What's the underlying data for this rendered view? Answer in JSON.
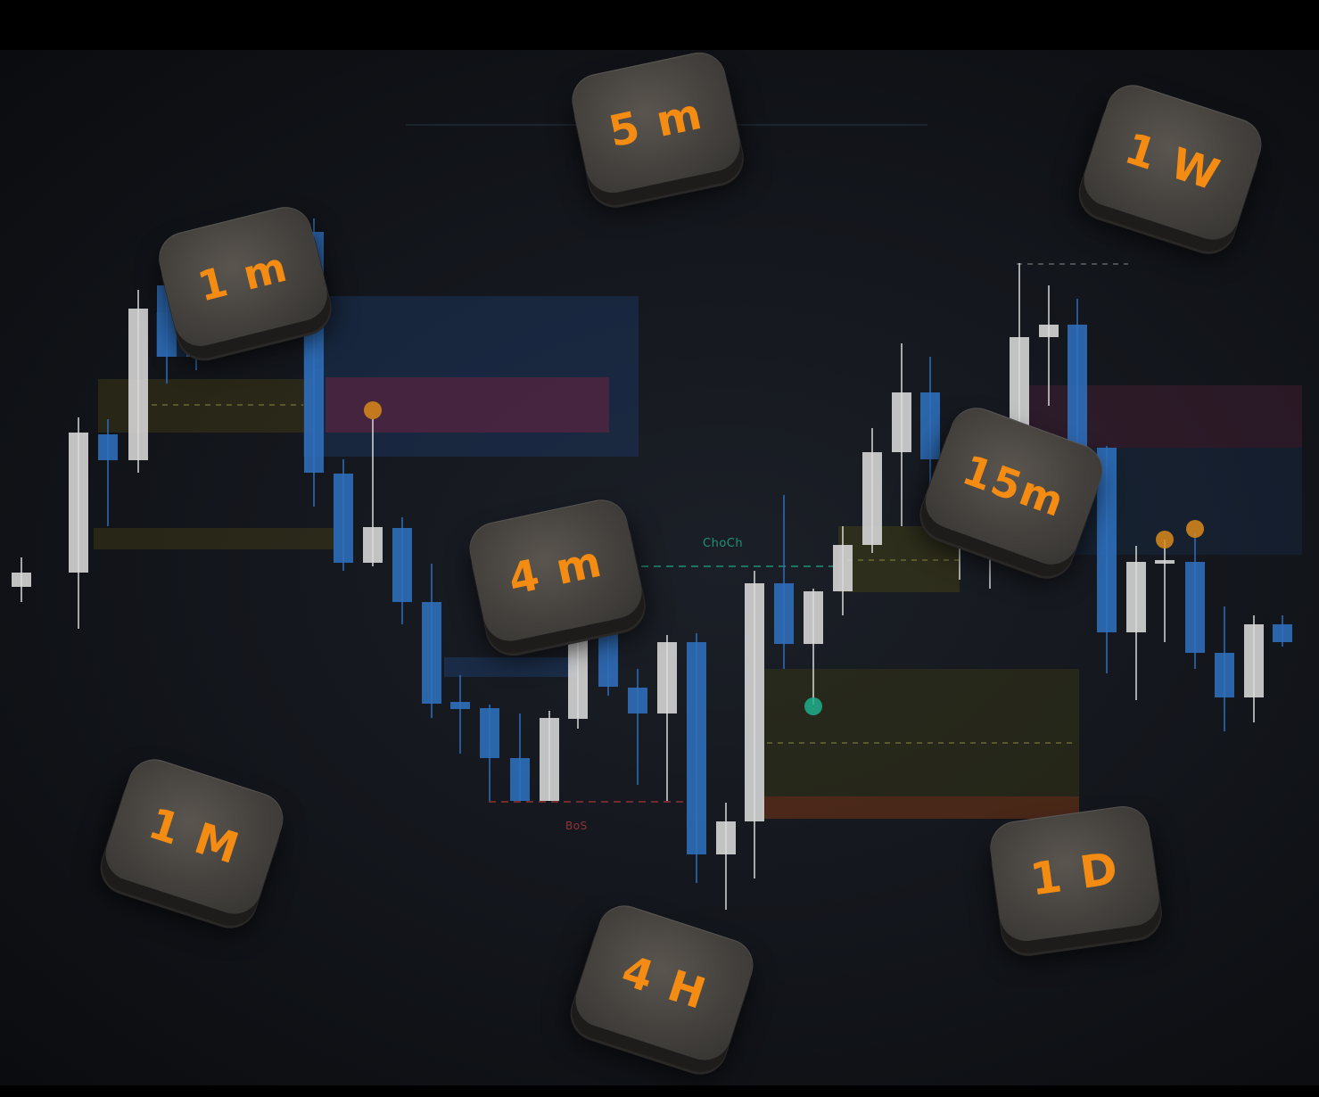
{
  "chart": {
    "annotations": {
      "choch_label": "ChoCh",
      "bos_label": "BoS"
    },
    "colors": {
      "bull_candle": "#d9d9d9",
      "bear_candle": "#2f6fbd",
      "key_text": "#f48b12",
      "choch": "#1fae8c",
      "bos": "#b03a3a"
    }
  },
  "timeframe_keys": [
    {
      "id": "1m",
      "label": "1 m"
    },
    {
      "id": "5m",
      "label": "5 m"
    },
    {
      "id": "1W",
      "label": "1 W"
    },
    {
      "id": "15m",
      "label": "15m"
    },
    {
      "id": "4m",
      "label": "4 m"
    },
    {
      "id": "1M",
      "label": "1 M"
    },
    {
      "id": "4H",
      "label": "4 H"
    },
    {
      "id": "1D",
      "label": "1 D"
    }
  ],
  "icons": [
    "candlestick-chart-icon"
  ]
}
